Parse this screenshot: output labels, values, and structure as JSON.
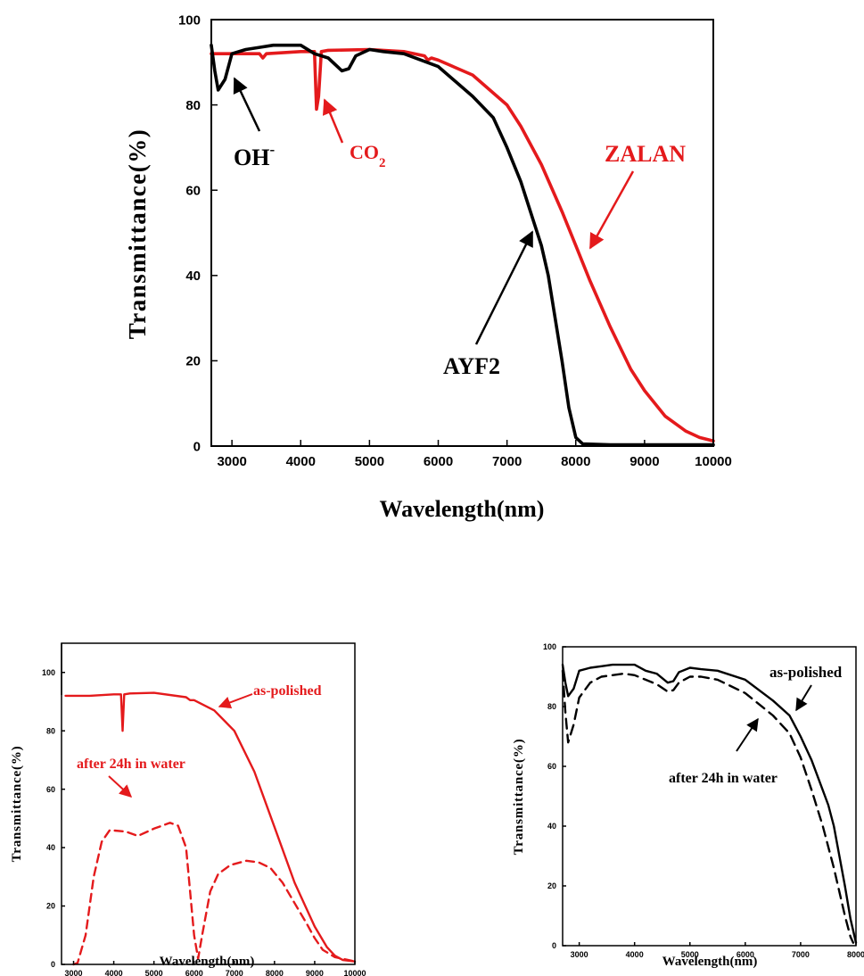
{
  "chart_data": [
    {
      "type": "line",
      "xlabel": "Wavelength(nm)",
      "ylabel": "Transmittance(%)",
      "xlim": [
        2700,
        10000
      ],
      "ylim": [
        0,
        100
      ],
      "xticks": [
        3000,
        4000,
        5000,
        6000,
        7000,
        8000,
        9000,
        10000
      ],
      "yticks": [
        0,
        20,
        40,
        60,
        80,
        100
      ],
      "grid": false,
      "series": [
        {
          "name": "ZALAN",
          "color": "#e41a1c",
          "style": "solid",
          "x": [
            2700,
            3400,
            3450,
            3500,
            4000,
            4200,
            4230,
            4260,
            4300,
            4400,
            5000,
            5500,
            5800,
            5850,
            5900,
            6000,
            6500,
            7000,
            7200,
            7500,
            7800,
            8000,
            8200,
            8500,
            8800,
            9000,
            9300,
            9600,
            9800,
            10000
          ],
          "y": [
            92,
            92,
            91,
            92,
            92.5,
            92.5,
            79,
            82,
            92.5,
            92.8,
            93,
            92.5,
            91.5,
            90.5,
            91,
            90.5,
            87,
            80,
            75,
            66,
            55,
            47,
            39,
            28,
            18,
            13,
            7,
            3.5,
            2,
            1.2
          ]
        },
        {
          "name": "AYF2",
          "color": "#000000",
          "style": "solid",
          "x": [
            2700,
            2750,
            2800,
            2900,
            3000,
            3200,
            3400,
            3600,
            3800,
            4000,
            4200,
            4400,
            4600,
            4700,
            4800,
            5000,
            5200,
            5500,
            6000,
            6500,
            6800,
            7000,
            7200,
            7400,
            7500,
            7600,
            7700,
            7800,
            7900,
            8000,
            8100,
            8500,
            10000
          ],
          "y": [
            94,
            88,
            83.5,
            86,
            92,
            93,
            93.5,
            94,
            94,
            94,
            92,
            91,
            88,
            88.5,
            91.5,
            93,
            92.5,
            92,
            89,
            82,
            77,
            70,
            62,
            52,
            47,
            40,
            30,
            20,
            9,
            2,
            0.5,
            0.3,
            0.3
          ]
        }
      ],
      "annotations": [
        {
          "label": "OH",
          "superscript": "-",
          "color": "#000000"
        },
        {
          "label": "CO",
          "subscript": "2",
          "color": "#e41a1c"
        },
        {
          "label": "ZALAN",
          "color": "#e41a1c"
        },
        {
          "label": "AYF2",
          "color": "#000000"
        }
      ]
    },
    {
      "type": "line",
      "xlabel": "Wavelength(nm)",
      "ylabel": "Transmittance(%)",
      "xlim": [
        2700,
        10000
      ],
      "ylim": [
        0,
        110
      ],
      "xticks": [
        3000,
        4000,
        5000,
        6000,
        7000,
        8000,
        9000,
        10000
      ],
      "yticks": [
        0,
        20,
        40,
        60,
        80,
        100
      ],
      "grid": false,
      "series": [
        {
          "color": "#e41a1c",
          "style": "solid",
          "x": [
            2800,
            3400,
            4000,
            4180,
            4220,
            4260,
            4400,
            5000,
            5800,
            5900,
            6000,
            6500,
            7000,
            7500,
            8000,
            8500,
            9000,
            9300,
            9500,
            9700,
            10000
          ],
          "y": [
            92,
            92,
            92.5,
            92.5,
            80,
            92.5,
            92.8,
            93,
            91.5,
            90.5,
            90.5,
            87,
            80,
            66,
            47,
            28,
            13,
            6,
            3,
            1.5,
            1
          ]
        },
        {
          "color": "#e41a1c",
          "style": "dashed",
          "x": [
            3000,
            3100,
            3300,
            3500,
            3700,
            3900,
            4300,
            4600,
            5000,
            5400,
            5600,
            5800,
            5900,
            6000,
            6100,
            6200,
            6400,
            6600,
            6900,
            7300,
            7600,
            7900,
            8200,
            8500,
            8800,
            9000,
            9200,
            9500,
            10000
          ],
          "y": [
            0,
            0.5,
            10,
            30,
            42,
            46,
            45.5,
            44,
            46.5,
            48.5,
            47.5,
            40,
            25,
            10,
            2,
            10,
            25,
            31,
            34,
            35.5,
            35,
            33,
            28,
            21,
            14,
            9,
            5,
            2.5,
            1
          ]
        }
      ],
      "annotations": [
        {
          "label": "as-polished",
          "color": "#e41a1c"
        },
        {
          "label": "after 24h in water",
          "color": "#e41a1c"
        }
      ]
    },
    {
      "type": "line",
      "xlabel": "Wavelength(nm)",
      "ylabel": "Transmittance(%)",
      "xlim": [
        2700,
        8000
      ],
      "ylim": [
        0,
        100
      ],
      "xticks": [
        3000,
        4000,
        5000,
        6000,
        7000,
        8000
      ],
      "yticks": [
        0,
        20,
        40,
        60,
        80,
        100
      ],
      "grid": false,
      "series": [
        {
          "color": "#000000",
          "style": "solid",
          "x": [
            2700,
            2750,
            2800,
            2900,
            3000,
            3200,
            3400,
            3600,
            3800,
            4000,
            4200,
            4400,
            4600,
            4700,
            4800,
            5000,
            5200,
            5500,
            6000,
            6500,
            6800,
            7000,
            7200,
            7400,
            7500,
            7600,
            7700,
            7800,
            7900,
            8000
          ],
          "y": [
            94,
            88,
            83.5,
            86,
            92,
            93,
            93.5,
            94,
            94,
            94,
            92,
            91,
            88,
            88.5,
            91.5,
            93,
            92.5,
            92,
            89,
            82,
            77,
            70,
            62,
            52,
            47,
            40,
            30,
            20,
            9,
            1
          ]
        },
        {
          "color": "#000000",
          "style": "dashed",
          "x": [
            2700,
            2750,
            2800,
            2900,
            3000,
            3200,
            3400,
            3600,
            3800,
            4000,
            4200,
            4400,
            4600,
            4700,
            4800,
            5000,
            5200,
            5500,
            6000,
            6500,
            6800,
            7000,
            7200,
            7400,
            7600,
            7700,
            7800,
            7900,
            7950
          ],
          "y": [
            92,
            78,
            68,
            74,
            83,
            88,
            90,
            90.5,
            91,
            90.5,
            89,
            87.5,
            85,
            85.5,
            88,
            90,
            90,
            89,
            84.5,
            77,
            71,
            63,
            52,
            40,
            26,
            18,
            10,
            3,
            1
          ]
        }
      ],
      "annotations": [
        {
          "label": "as-polished",
          "color": "#000000"
        },
        {
          "label": "after 24h in water",
          "color": "#000000"
        }
      ]
    }
  ]
}
